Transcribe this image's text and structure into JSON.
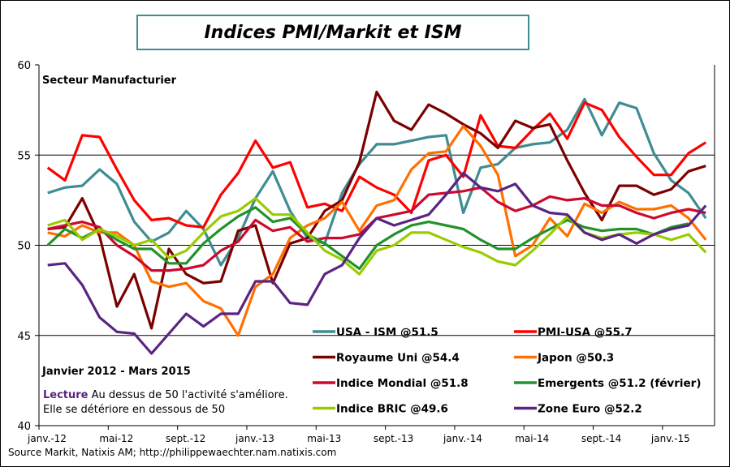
{
  "chart_data": {
    "type": "line",
    "title": "Indices PMI/Markit et ISM",
    "subtitle": "Secteur Manufacturier",
    "period_label": "Janvier 2012 - Mars 2015",
    "note_label": "Lecture",
    "note_line1": "Au dessus de 50 l'activité s'améliore.",
    "note_line2": "Elle se détériore en dessous de 50",
    "source": "Source Markit, Natixis AM; http://philippewaechter.nam.natixis.com",
    "ylim": [
      40,
      60
    ],
    "yticks": [
      40,
      45,
      50,
      55,
      60
    ],
    "grid_y": [
      45,
      50,
      55
    ],
    "x_start": "2012-01",
    "x_end": "2015-03",
    "xtick_labels": [
      "janv.-12",
      "mai-12",
      "sept.-12",
      "janv.-13",
      "mai-13",
      "sept.-13",
      "janv.-14",
      "mai-14",
      "sept.-14",
      "janv.-15"
    ],
    "legend_placement": "bottom-right",
    "series": [
      {
        "name": "USA - ISM @51.5",
        "color": "#3f8c93",
        "values": [
          52.9,
          53.2,
          53.3,
          54.2,
          53.4,
          51.3,
          50.2,
          50.7,
          51.9,
          50.9,
          48.9,
          50.4,
          52.6,
          54.1,
          51.9,
          50.4,
          50.1,
          52.9,
          54.5,
          55.6,
          55.6,
          55.8,
          56.0,
          56.1,
          51.8,
          54.3,
          54.5,
          55.4,
          55.6,
          55.7,
          56.4,
          58.1,
          56.1,
          57.9,
          57.6,
          55.1,
          53.6,
          52.9,
          51.5
        ]
      },
      {
        "name": "PMI-USA @55.7",
        "color": "#ff0000",
        "values": [
          54.3,
          53.6,
          56.1,
          56.0,
          54.2,
          52.5,
          51.4,
          51.5,
          51.1,
          51.0,
          52.8,
          54.0,
          55.8,
          54.3,
          54.6,
          52.1,
          52.3,
          51.9,
          53.8,
          53.2,
          52.8,
          51.8,
          54.7,
          55.0,
          53.8,
          57.2,
          55.5,
          55.4,
          56.4,
          57.3,
          55.9,
          57.9,
          57.5,
          56.0,
          54.9,
          53.9,
          53.9,
          55.1,
          55.7
        ]
      },
      {
        "name": "Royaume Uni @54.4",
        "color": "#7b0000",
        "values": [
          50.9,
          51.0,
          52.6,
          50.5,
          46.6,
          48.4,
          45.4,
          49.8,
          48.4,
          47.9,
          48.0,
          50.8,
          51.1,
          47.9,
          50.1,
          50.4,
          51.9,
          52.5,
          54.6,
          58.5,
          56.9,
          56.4,
          57.8,
          57.3,
          56.7,
          56.2,
          55.4,
          56.9,
          56.5,
          56.7,
          54.7,
          52.9,
          51.4,
          53.3,
          53.3,
          52.8,
          53.1,
          54.1,
          54.4
        ]
      },
      {
        "name": "Japon @50.3",
        "color": "#ff7000",
        "values": [
          50.7,
          50.5,
          51.1,
          50.7,
          50.7,
          50.0,
          48.0,
          47.7,
          47.9,
          46.9,
          46.5,
          45.0,
          47.7,
          48.4,
          50.4,
          51.1,
          51.5,
          52.4,
          50.8,
          52.2,
          52.5,
          54.2,
          55.1,
          55.2,
          56.6,
          55.5,
          53.9,
          49.4,
          50.0,
          51.5,
          50.5,
          52.3,
          51.8,
          52.4,
          52.0,
          52.0,
          52.2,
          51.5,
          50.3
        ]
      },
      {
        "name": "Indice Mondial @51.8",
        "color": "#cc0a2e",
        "values": [
          50.9,
          51.1,
          51.3,
          51.0,
          50.0,
          49.4,
          48.6,
          48.6,
          48.7,
          48.9,
          49.7,
          50.2,
          51.4,
          50.8,
          51.0,
          50.2,
          50.4,
          50.4,
          50.6,
          51.5,
          51.7,
          51.9,
          52.8,
          52.9,
          53.0,
          53.2,
          52.4,
          51.9,
          52.2,
          52.7,
          52.5,
          52.6,
          52.2,
          52.2,
          51.8,
          51.5,
          51.8,
          52.0,
          51.8
        ]
      },
      {
        "name": "Emergents @51.2 (février)",
        "color": "#23922a",
        "values": [
          50.0,
          50.9,
          50.4,
          50.9,
          50.3,
          49.8,
          49.8,
          49.0,
          49.0,
          50.1,
          50.9,
          51.6,
          52.1,
          51.3,
          51.5,
          50.6,
          50.1,
          49.4,
          48.7,
          50.0,
          50.6,
          51.1,
          51.3,
          51.1,
          50.9,
          50.3,
          49.8,
          49.8,
          50.4,
          50.9,
          51.4,
          51.0,
          50.8,
          50.9,
          50.9,
          50.6,
          51.0,
          51.2
        ]
      },
      {
        "name": "Indice BRIC @49.6",
        "color": "#99cc00",
        "values": [
          51.1,
          51.4,
          50.3,
          50.9,
          50.5,
          50.0,
          50.3,
          49.3,
          49.7,
          50.7,
          51.6,
          51.9,
          52.6,
          51.7,
          51.7,
          50.7,
          49.7,
          49.2,
          48.4,
          49.7,
          50.0,
          50.7,
          50.7,
          50.3,
          49.9,
          49.6,
          49.1,
          48.9,
          49.7,
          50.6,
          51.6,
          50.7,
          50.4,
          50.6,
          50.7,
          50.6,
          50.3,
          50.6,
          49.6
        ]
      },
      {
        "name": "Zone Euro @52.2",
        "color": "#5a2481",
        "values": [
          48.9,
          49.0,
          47.8,
          46.0,
          45.2,
          45.1,
          44.0,
          45.1,
          46.2,
          45.5,
          46.2,
          46.2,
          48.0,
          48.0,
          46.8,
          46.7,
          48.4,
          48.9,
          50.4,
          51.5,
          51.1,
          51.4,
          51.7,
          52.8,
          54.0,
          53.2,
          53.0,
          53.4,
          52.2,
          51.8,
          51.7,
          50.7,
          50.3,
          50.6,
          50.1,
          50.6,
          50.9,
          51.1,
          52.2
        ]
      }
    ]
  }
}
